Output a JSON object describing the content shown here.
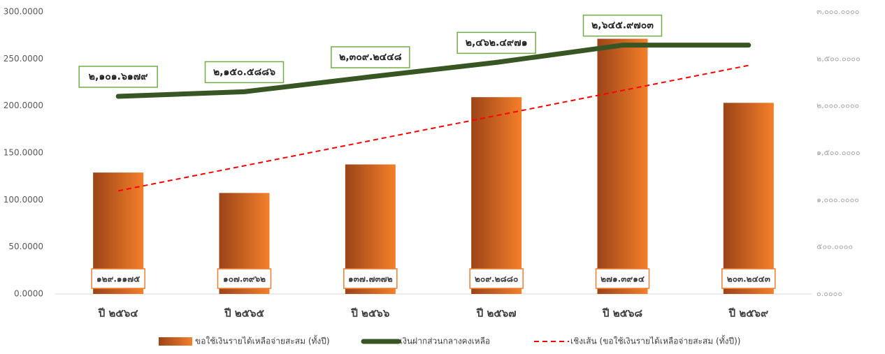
{
  "chart_data": {
    "type": "combo",
    "categories": [
      "ปี ๒๕๖๔",
      "ปี ๒๕๖๕",
      "ปี ๒๕๖๖",
      "ปี ๒๕๖๗",
      "ปี ๒๕๖๘",
      "ปี ๒๕๖๙"
    ],
    "series": [
      {
        "name": "ขอใช้เงินรายได้เหลือจ่ายสะสม (ทั้งปี)",
        "type": "bar",
        "color": [
          "#9c4418",
          "#f47f2a"
        ],
        "values": [
          129.1175,
          107.3962,
          137.7372,
          209.288,
          271.3914,
          203.2443
        ],
        "value_labels": [
          "๑๒๙.๑๑๗๕",
          "๑๐๗.๓๙๖๒",
          "๑๓๗.๗๓๗๒",
          "๒๐๙.๒๘๘๐",
          "๒๗๑.๓๙๑๔",
          "๒๐๓.๒๔๔๓"
        ]
      },
      {
        "name": "เงินฝากส่วนกลางคงเหลือ",
        "type": "line",
        "axis": "y2",
        "color": "#375623",
        "values": [
          2101.6179,
          2150.5886,
          2309.2448,
          2462.4971,
          2645.9703,
          2645.97
        ],
        "value_labels": [
          "๒,๑๐๑.๖๑๗๙",
          "๒,๑๕๐.๕๘๘๖",
          "๒,๓๐๙.๒๔๔๘",
          "๒,๔๖๒.๔๙๗๑",
          "๒,๖๔๕.๙๗๐๓",
          null
        ]
      },
      {
        "name": "เชิงเส้น (ขอใช้เงินรายได้เหลือจ่ายสะสม (ทั้งปี))",
        "type": "trendline",
        "color": "#ff0000",
        "values": [
          109.64,
          136.33,
          163.02,
          189.71,
          216.4,
          243.09
        ]
      }
    ],
    "ylim": [
      0,
      300
    ],
    "yticks": [
      {
        "value": 0,
        "label": "0.0000"
      },
      {
        "value": 50,
        "label": "50.0000"
      },
      {
        "value": 100,
        "label": "100.0000"
      },
      {
        "value": 150,
        "label": "150.0000"
      },
      {
        "value": 200,
        "label": "200.0000"
      },
      {
        "value": 250,
        "label": "250.0000"
      },
      {
        "value": 300,
        "label": "300.0000"
      }
    ],
    "y2lim": [
      0,
      3000
    ],
    "y2ticks": [
      {
        "value": 0,
        "label": "๐.๐๐๐๐"
      },
      {
        "value": 500,
        "label": "๕๐๐.๐๐๐๐"
      },
      {
        "value": 1000,
        "label": "๑,๐๐๐.๐๐๐๐"
      },
      {
        "value": 1500,
        "label": "๑,๕๐๐.๐๐๐๐"
      },
      {
        "value": 2000,
        "label": "๒,๐๐๐.๐๐๐๐"
      },
      {
        "value": 2500,
        "label": "๒,๕๐๐.๐๐๐๐"
      },
      {
        "value": 3000,
        "label": "๓,๐๐๐.๐๐๐๐"
      }
    ],
    "legend": "bottom"
  }
}
